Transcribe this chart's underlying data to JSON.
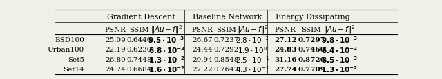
{
  "title_row": [
    "Gradient Descent",
    "Baseline Network",
    "Energy Dissipating"
  ],
  "rows": [
    [
      "BSD100",
      "25.09",
      "0.6440",
      "9.5",
      "-3",
      "26.67",
      "0.7237",
      "2.8",
      "-1",
      "27.12",
      "0.7297",
      "9.8",
      "-3"
    ],
    [
      "Urban100",
      "22.19",
      "0.6230",
      "6.8",
      "-2",
      "24.44",
      "0.7292",
      "1.9",
      "0",
      "24.83",
      "0.7460",
      "6.4",
      "-2"
    ],
    [
      "Set5",
      "26.80",
      "0.7448",
      "1.3",
      "-2",
      "29.94",
      "0.8548",
      "2.5",
      "-1",
      "31.16",
      "0.8726",
      "8.5",
      "-3"
    ],
    [
      "Set14",
      "24.74",
      "0.6684",
      "1.6",
      "-2",
      "27.22",
      "0.7642",
      "4.3",
      "-1",
      "27.74",
      "0.7709",
      "1.3",
      "-2"
    ]
  ],
  "bold_cols_per_group": [
    0,
    1,
    2
  ],
  "bold_groups": [
    2
  ],
  "bold_norm_groups": [
    0
  ],
  "bold_psnr_groups": [
    2
  ],
  "bold_ssim_groups": [
    2
  ],
  "bg_color": "#f0f0e8",
  "fig_width": 6.4,
  "fig_height": 1.16,
  "fontsize_group": 8.0,
  "fontsize_header": 7.5,
  "fontsize_data": 7.5
}
